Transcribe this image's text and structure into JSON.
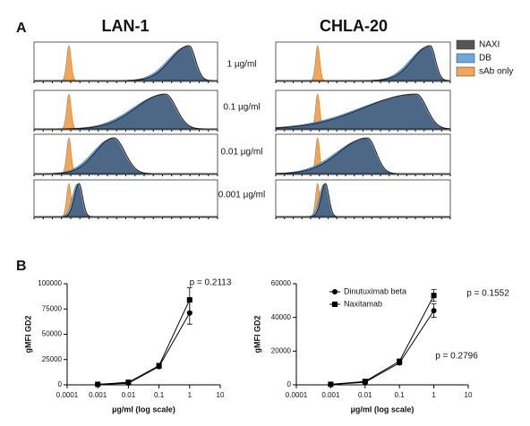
{
  "panel_labels": [
    "A",
    "B"
  ],
  "histograms": {
    "titles": [
      "LAN-1",
      "CHLA-20"
    ],
    "concentrations": [
      "1 µg/ml",
      "0.1 µg/ml",
      "0.01 µg/ml",
      "0.001 µg/ml"
    ],
    "legend": [
      {
        "name": "NAXI",
        "color": "#555555"
      },
      {
        "name": "DB",
        "color": "#6fa8dc"
      },
      {
        "name": "sAb only",
        "color": "#f2a65a"
      }
    ]
  },
  "chart_data": [
    {
      "type": "line",
      "xscale": "log",
      "x": [
        0.001,
        0.01,
        0.1,
        1
      ],
      "xlim": [
        0.0001,
        10
      ],
      "xticks": [
        0.0001,
        0.001,
        0.01,
        0.1,
        1,
        10
      ],
      "ylim": [
        0,
        100000
      ],
      "yticks": [
        0,
        25000,
        50000,
        75000,
        100000
      ],
      "xlabel": "µg/ml  (log scale)",
      "ylabel": "gMFI GD2",
      "annotations": [
        "p = 0.2113"
      ],
      "series": [
        {
          "marker": "circle",
          "color": "#000000",
          "values": [
            500,
            1500,
            18000,
            71000
          ],
          "errors": [
            300,
            500,
            1500,
            11000
          ]
        },
        {
          "marker": "square",
          "color": "#000000",
          "values": [
            500,
            2500,
            19000,
            84000
          ],
          "errors": [
            300,
            500,
            1500,
            12000
          ]
        }
      ]
    },
    {
      "type": "line",
      "xscale": "log",
      "x": [
        0.001,
        0.01,
        0.1,
        1
      ],
      "xlim": [
        0.0001,
        10
      ],
      "xticks": [
        0.0001,
        0.001,
        0.01,
        0.1,
        1,
        10
      ],
      "ylim": [
        0,
        60000
      ],
      "yticks": [
        0,
        20000,
        40000,
        60000
      ],
      "xlabel": "µg/ml  (log scale)",
      "ylabel": "gMFI GD2",
      "annotations": [
        "p = 0.1552",
        "p = 0.2796"
      ],
      "series": [
        {
          "name": "Dinutuximab beta",
          "marker": "circle",
          "color": "#000000",
          "values": [
            200,
            1500,
            13000,
            44000
          ],
          "errors": [
            200,
            500,
            1000,
            4000
          ]
        },
        {
          "name": "Naxitamab",
          "marker": "square",
          "color": "#000000",
          "values": [
            300,
            2000,
            14000,
            53000
          ],
          "errors": [
            200,
            500,
            1000,
            3500
          ]
        }
      ]
    }
  ]
}
